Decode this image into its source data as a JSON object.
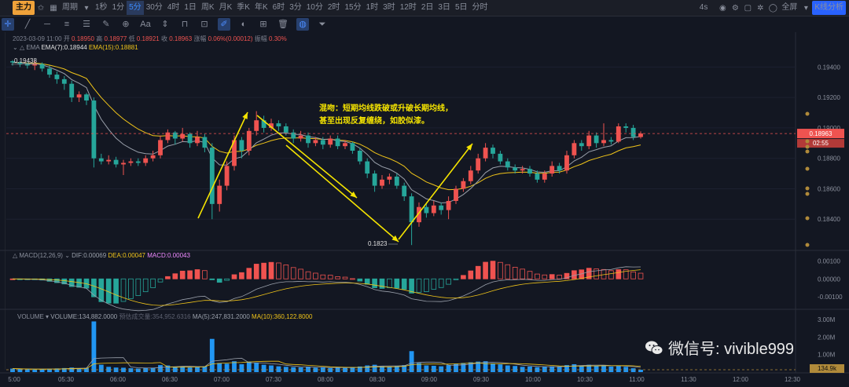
{
  "topbar": {
    "mode_label": "主力",
    "period_label": "周期",
    "timeframes": [
      "1秒",
      "1分",
      "5分",
      "30分",
      "4时",
      "1日",
      "周K",
      "月K",
      "季K",
      "年K",
      "6时",
      "3分",
      "10分",
      "2时",
      "15分",
      "1时",
      "3时",
      "12时",
      "2日",
      "3日",
      "5日",
      "分时"
    ],
    "active_timeframe": "5分",
    "speed_label": "4s",
    "fullscreen_label": "全屏",
    "kline_analysis_label": "K线分析"
  },
  "info": {
    "date": "2023-03-09 11:00",
    "open_label": "开",
    "open": "0.18950",
    "high_label": "高",
    "high": "0.18977",
    "low_label": "低",
    "low": "0.18921",
    "close_label": "收",
    "close": "0.18963",
    "change_label": "涨幅",
    "change": "0.06%(0.00012)",
    "amp_label": "振幅",
    "amp": "0.30%"
  },
  "ema": {
    "name": "EMA",
    "ema7": "EMA(7):0.18944",
    "ema15": "EMA(15):0.18881"
  },
  "macd": {
    "name": "MACD(12,26,9)",
    "dif": "DIF:0.00069",
    "dea": "DEA:0.00047",
    "macd": "MACD:0.00043"
  },
  "volume": {
    "name": "VOLUME",
    "volume": "VOLUME:134,882.0000",
    "est": "预估成交量:354,952.6316",
    "ma5": "MA(5):247,831.2000",
    "ma10": "MA(10):360,122.8000"
  },
  "price_axis": [
    "0.19400",
    "0.19200",
    "0.19000",
    "0.18800",
    "0.18600",
    "0.18400"
  ],
  "current_price": "0.18963",
  "countdown": "02:55",
  "macd_axis": [
    "0.00100",
    "0.00000",
    "-0.00100"
  ],
  "vol_axis": [
    "3.00M",
    "2.00M",
    "1.00M"
  ],
  "current_volume": "134.9k",
  "time_axis": [
    "5:00",
    "05:30",
    "06:00",
    "06:30",
    "07:00",
    "07:30",
    "08:00",
    "08:30",
    "09:00",
    "09:30",
    "10:00",
    "10:30",
    "11:00",
    "11:30",
    "12:00",
    "12:30"
  ],
  "high_mark": "0.19438",
  "low_mark": "0.1823",
  "annotation": {
    "line1": "混吻：短期均线跌破或升破长期均线，",
    "line2": "甚至出现反复缠绕，如胶似漆。"
  },
  "watermark": "微信号: vivible999",
  "colors": {
    "up": "#ef5350",
    "down": "#26a69a",
    "ema7": "#cccccc",
    "ema15": "#f0c419",
    "vol": "#2196f3",
    "arrow": "#f5e400"
  }
}
